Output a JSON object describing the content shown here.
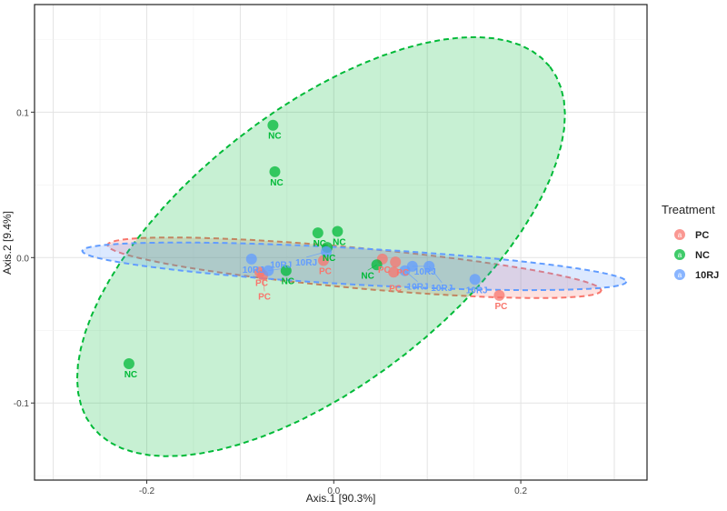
{
  "chart_data": {
    "type": "scatter",
    "title": "",
    "xlabel": "Axis.1   [90.3%]",
    "ylabel": "Axis.2   [9.4%]",
    "xlim": [
      -0.32,
      0.335
    ],
    "ylim": [
      -0.153,
      0.174
    ],
    "x_ticks": [
      -0.2,
      0.0,
      0.2
    ],
    "x_tick_labels": [
      "-0.2",
      "0.0",
      "0.2"
    ],
    "y_ticks": [
      -0.1,
      0.0,
      0.1
    ],
    "y_tick_labels": [
      "-0.1",
      "0.0",
      "0.1"
    ],
    "grid": true,
    "legend": {
      "title": "Treatment",
      "placement": "right",
      "key_glyph": "a"
    },
    "series": [
      {
        "name": "PC",
        "color": "#F8766D",
        "points": [
          [
            -0.079,
            -0.01
          ],
          [
            -0.076,
            -0.012
          ],
          [
            -0.011,
            -0.002
          ],
          [
            0.052,
            -0.001
          ],
          [
            0.066,
            -0.003
          ],
          [
            0.064,
            -0.01
          ],
          [
            0.177,
            -0.026
          ]
        ],
        "ellipse": {
          "center": [
            0.022,
            -0.007
          ],
          "a": [
            0.264,
            -0.0156
          ],
          "b": [
            -0.0019,
            -0.0138
          ]
        }
      },
      {
        "name": "NC",
        "color": "#00BA38",
        "points": [
          [
            -0.065,
            0.091
          ],
          [
            -0.063,
            0.059
          ],
          [
            -0.017,
            0.017
          ],
          [
            0.004,
            0.018
          ],
          [
            -0.007,
            0.007
          ],
          [
            -0.051,
            -0.009
          ],
          [
            0.046,
            -0.005
          ],
          [
            -0.219,
            -0.073
          ]
        ],
        "ellipse": {
          "center": [
            -0.0136,
            0.0075
          ],
          "a": [
            0.2447,
            0.1238
          ],
          "b": [
            0.0903,
            -0.0738
          ]
        }
      },
      {
        "name": "10RJ",
        "color": "#619CFF",
        "points": [
          [
            -0.088,
            -0.001
          ],
          [
            -0.07,
            -0.009
          ],
          [
            -0.008,
            0.004
          ],
          [
            0.076,
            -0.009
          ],
          [
            0.084,
            -0.006
          ],
          [
            0.102,
            -0.006
          ],
          [
            0.151,
            -0.015
          ]
        ],
        "ellipse": {
          "center": [
            0.022,
            -0.006
          ],
          "a": [
            0.291,
            -0.0106
          ],
          "b": [
            -0.001,
            -0.0125
          ]
        }
      }
    ]
  }
}
